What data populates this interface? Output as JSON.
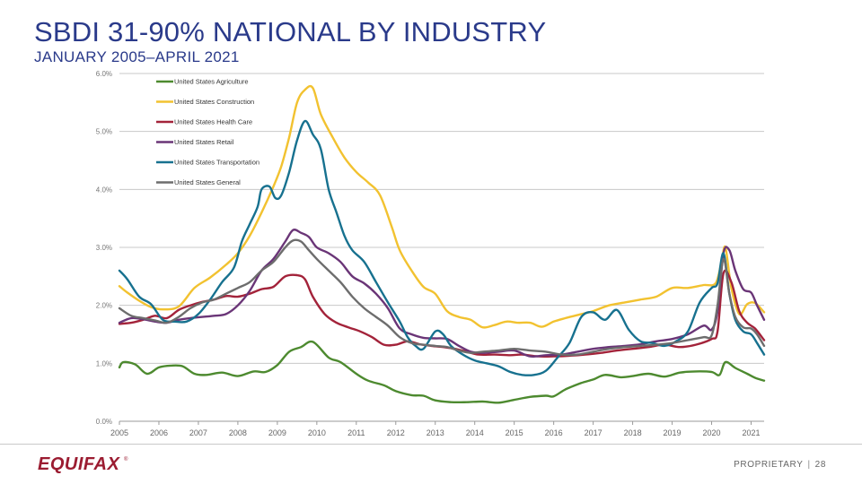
{
  "slide": {
    "title": "SBDI 31-90% NATIONAL BY INDUSTRY",
    "subtitle": "JANUARY 2005–APRIL 2021"
  },
  "footer": {
    "logo_text": "EQUIFAX",
    "proprietary": "PROPRIETARY",
    "separator": "|",
    "page_number": "28"
  },
  "colors": {
    "title": "#2a3a8a",
    "logo": "#9b1c31"
  },
  "chart_data": {
    "type": "line",
    "title": "",
    "xlabel": "",
    "ylabel": "",
    "ylim": [
      0,
      6
    ],
    "xlim": [
      2005,
      2021.33
    ],
    "yticks": [
      {
        "value": 0,
        "label": "0.0%"
      },
      {
        "value": 1,
        "label": "1.0%"
      },
      {
        "value": 2,
        "label": "2.0%"
      },
      {
        "value": 3,
        "label": "3.0%"
      },
      {
        "value": 4,
        "label": "4.0%"
      },
      {
        "value": 5,
        "label": "5.0%"
      },
      {
        "value": 6,
        "label": "6.0%"
      }
    ],
    "xticks": [
      "2005",
      "2006",
      "2007",
      "2008",
      "2009",
      "2010",
      "2011",
      "2012",
      "2013",
      "2014",
      "2015",
      "2016",
      "2017",
      "2018",
      "2019",
      "2020",
      "2021"
    ],
    "grid": true,
    "legend_position": "top-left",
    "series": [
      {
        "name": "United States Agriculture",
        "color": "#4d8a2f",
        "x": [
          2005.0,
          2005.1,
          2005.4,
          2005.7,
          2006.0,
          2006.3,
          2006.6,
          2006.9,
          2007.2,
          2007.6,
          2008.0,
          2008.4,
          2008.7,
          2009.0,
          2009.3,
          2009.6,
          2009.9,
          2010.3,
          2010.6,
          2011.0,
          2011.3,
          2011.7,
          2012.0,
          2012.4,
          2012.7,
          2013.0,
          2013.4,
          2013.8,
          2014.2,
          2014.6,
          2015.0,
          2015.4,
          2015.8,
          2016.0,
          2016.3,
          2016.7,
          2017.0,
          2017.3,
          2017.7,
          2018.0,
          2018.4,
          2018.8,
          2019.2,
          2019.6,
          2020.0,
          2020.2,
          2020.35,
          2020.6,
          2020.9,
          2021.1,
          2021.33
        ],
        "values": [
          0.93,
          1.02,
          0.98,
          0.82,
          0.93,
          0.96,
          0.95,
          0.82,
          0.8,
          0.84,
          0.78,
          0.86,
          0.85,
          0.97,
          1.2,
          1.28,
          1.37,
          1.1,
          1.02,
          0.82,
          0.7,
          0.62,
          0.52,
          0.45,
          0.44,
          0.36,
          0.33,
          0.33,
          0.34,
          0.32,
          0.37,
          0.42,
          0.44,
          0.43,
          0.55,
          0.66,
          0.72,
          0.8,
          0.76,
          0.78,
          0.82,
          0.77,
          0.84,
          0.86,
          0.85,
          0.8,
          1.02,
          0.92,
          0.82,
          0.75,
          0.7
        ]
      },
      {
        "name": "United States Construction",
        "color": "#f2c230",
        "x": [
          2005.0,
          2005.2,
          2005.5,
          2005.8,
          2006.1,
          2006.5,
          2006.9,
          2007.3,
          2007.7,
          2008.0,
          2008.3,
          2008.6,
          2008.9,
          2009.1,
          2009.3,
          2009.5,
          2009.7,
          2009.9,
          2010.1,
          2010.4,
          2010.7,
          2011.0,
          2011.3,
          2011.6,
          2011.9,
          2012.1,
          2012.4,
          2012.7,
          2013.0,
          2013.3,
          2013.6,
          2013.9,
          2014.2,
          2014.5,
          2014.8,
          2015.1,
          2015.4,
          2015.7,
          2016.0,
          2016.3,
          2016.7,
          2017.0,
          2017.4,
          2017.8,
          2018.2,
          2018.6,
          2019.0,
          2019.4,
          2019.8,
          2020.1,
          2020.25,
          2020.35,
          2020.5,
          2020.7,
          2020.9,
          2021.1,
          2021.33
        ],
        "values": [
          2.33,
          2.22,
          2.08,
          1.97,
          1.93,
          1.98,
          2.3,
          2.48,
          2.7,
          2.9,
          3.2,
          3.6,
          4.05,
          4.4,
          4.9,
          5.5,
          5.72,
          5.75,
          5.3,
          4.9,
          4.55,
          4.3,
          4.12,
          3.9,
          3.35,
          2.95,
          2.6,
          2.32,
          2.2,
          1.9,
          1.8,
          1.75,
          1.62,
          1.66,
          1.72,
          1.7,
          1.7,
          1.63,
          1.72,
          1.78,
          1.85,
          1.9,
          2.0,
          2.05,
          2.1,
          2.15,
          2.3,
          2.3,
          2.35,
          2.38,
          2.75,
          3.0,
          2.3,
          1.85,
          2.02,
          2.04,
          1.88
        ]
      },
      {
        "name": "United States Health Care",
        "color": "#a3233a",
        "x": [
          2005.0,
          2005.3,
          2005.6,
          2005.9,
          2006.2,
          2006.5,
          2006.8,
          2007.1,
          2007.4,
          2007.7,
          2008.0,
          2008.3,
          2008.6,
          2008.9,
          2009.2,
          2009.5,
          2009.7,
          2009.9,
          2010.2,
          2010.5,
          2010.8,
          2011.1,
          2011.4,
          2011.7,
          2012.0,
          2012.3,
          2012.6,
          2012.9,
          2013.2,
          2013.5,
          2013.8,
          2014.1,
          2014.5,
          2014.9,
          2015.2,
          2015.6,
          2016.0,
          2016.4,
          2016.8,
          2017.2,
          2017.6,
          2018.0,
          2018.4,
          2018.8,
          2019.2,
          2019.6,
          2020.0,
          2020.15,
          2020.3,
          2020.5,
          2020.7,
          2020.9,
          2021.1,
          2021.33
        ],
        "values": [
          1.68,
          1.7,
          1.75,
          1.82,
          1.78,
          1.92,
          2.0,
          2.06,
          2.1,
          2.16,
          2.15,
          2.2,
          2.28,
          2.32,
          2.5,
          2.52,
          2.45,
          2.15,
          1.85,
          1.7,
          1.62,
          1.55,
          1.45,
          1.32,
          1.32,
          1.38,
          1.33,
          1.3,
          1.28,
          1.25,
          1.2,
          1.15,
          1.15,
          1.14,
          1.15,
          1.12,
          1.12,
          1.13,
          1.15,
          1.18,
          1.22,
          1.25,
          1.28,
          1.32,
          1.28,
          1.32,
          1.42,
          1.55,
          2.55,
          2.4,
          1.9,
          1.7,
          1.6,
          1.4
        ]
      },
      {
        "name": "United States Retail",
        "color": "#6a3577",
        "x": [
          2005.0,
          2005.3,
          2005.6,
          2005.9,
          2006.2,
          2006.5,
          2006.8,
          2007.1,
          2007.4,
          2007.7,
          2008.0,
          2008.3,
          2008.6,
          2008.9,
          2009.2,
          2009.4,
          2009.6,
          2009.8,
          2010.0,
          2010.3,
          2010.6,
          2010.9,
          2011.2,
          2011.5,
          2011.8,
          2012.1,
          2012.4,
          2012.7,
          2013.0,
          2013.3,
          2013.6,
          2013.9,
          2014.2,
          2014.6,
          2015.0,
          2015.4,
          2015.8,
          2016.2,
          2016.6,
          2017.0,
          2017.4,
          2017.8,
          2018.2,
          2018.6,
          2019.0,
          2019.4,
          2019.8,
          2020.0,
          2020.15,
          2020.3,
          2020.45,
          2020.6,
          2020.8,
          2021.0,
          2021.15,
          2021.33
        ],
        "values": [
          1.7,
          1.78,
          1.76,
          1.72,
          1.7,
          1.75,
          1.78,
          1.8,
          1.82,
          1.85,
          2.0,
          2.25,
          2.6,
          2.8,
          3.1,
          3.3,
          3.25,
          3.18,
          3.0,
          2.9,
          2.75,
          2.5,
          2.38,
          2.2,
          1.95,
          1.6,
          1.5,
          1.44,
          1.43,
          1.42,
          1.3,
          1.2,
          1.18,
          1.2,
          1.22,
          1.12,
          1.14,
          1.15,
          1.2,
          1.25,
          1.28,
          1.3,
          1.33,
          1.38,
          1.42,
          1.5,
          1.65,
          1.58,
          1.9,
          2.9,
          2.95,
          2.6,
          2.28,
          2.22,
          2.0,
          1.75
        ]
      },
      {
        "name": "United States Transportation",
        "color": "#17718f",
        "x": [
          2005.0,
          2005.2,
          2005.5,
          2005.8,
          2006.1,
          2006.4,
          2006.7,
          2007.0,
          2007.3,
          2007.6,
          2007.9,
          2008.1,
          2008.3,
          2008.5,
          2008.6,
          2008.8,
          2008.95,
          2009.1,
          2009.3,
          2009.5,
          2009.7,
          2009.9,
          2010.1,
          2010.3,
          2010.5,
          2010.7,
          2010.9,
          2011.2,
          2011.5,
          2011.8,
          2012.1,
          2012.3,
          2012.5,
          2012.7,
          2013.0,
          2013.2,
          2013.4,
          2013.7,
          2014.0,
          2014.3,
          2014.6,
          2014.9,
          2015.2,
          2015.5,
          2015.8,
          2016.1,
          2016.4,
          2016.7,
          2017.0,
          2017.3,
          2017.6,
          2017.9,
          2018.2,
          2018.5,
          2018.8,
          2019.1,
          2019.4,
          2019.7,
          2020.0,
          2020.15,
          2020.3,
          2020.45,
          2020.6,
          2020.8,
          2021.0,
          2021.15,
          2021.33
        ],
        "values": [
          2.6,
          2.45,
          2.15,
          2.02,
          1.75,
          1.72,
          1.72,
          1.85,
          2.1,
          2.4,
          2.65,
          3.1,
          3.4,
          3.7,
          4.0,
          4.05,
          3.85,
          3.9,
          4.3,
          4.85,
          5.18,
          4.95,
          4.7,
          4.0,
          3.6,
          3.2,
          2.95,
          2.75,
          2.4,
          2.05,
          1.72,
          1.45,
          1.3,
          1.25,
          1.55,
          1.5,
          1.3,
          1.15,
          1.05,
          1.0,
          0.95,
          0.85,
          0.8,
          0.8,
          0.87,
          1.1,
          1.35,
          1.8,
          1.88,
          1.75,
          1.92,
          1.58,
          1.38,
          1.35,
          1.3,
          1.38,
          1.55,
          2.05,
          2.3,
          2.38,
          2.9,
          2.2,
          1.75,
          1.55,
          1.5,
          1.35,
          1.15
        ]
      },
      {
        "name": "United States General",
        "color": "#6d6d6d",
        "x": [
          2005.0,
          2005.3,
          2005.6,
          2005.9,
          2006.2,
          2006.5,
          2006.8,
          2007.1,
          2007.4,
          2007.7,
          2008.0,
          2008.3,
          2008.6,
          2008.9,
          2009.2,
          2009.4,
          2009.6,
          2009.8,
          2010.0,
          2010.3,
          2010.6,
          2010.9,
          2011.2,
          2011.5,
          2011.8,
          2012.1,
          2012.4,
          2012.7,
          2013.0,
          2013.3,
          2013.6,
          2013.9,
          2014.2,
          2014.6,
          2015.0,
          2015.4,
          2015.8,
          2016.2,
          2016.6,
          2017.0,
          2017.4,
          2017.8,
          2018.2,
          2018.6,
          2019.0,
          2019.4,
          2019.8,
          2020.0,
          2020.15,
          2020.3,
          2020.45,
          2020.6,
          2020.8,
          2021.0,
          2021.15,
          2021.33
        ],
        "values": [
          1.95,
          1.82,
          1.78,
          1.74,
          1.7,
          1.8,
          1.95,
          2.05,
          2.1,
          2.2,
          2.3,
          2.4,
          2.6,
          2.75,
          3.0,
          3.12,
          3.1,
          2.95,
          2.8,
          2.6,
          2.4,
          2.15,
          1.95,
          1.8,
          1.65,
          1.45,
          1.35,
          1.32,
          1.3,
          1.28,
          1.22,
          1.18,
          1.2,
          1.22,
          1.25,
          1.22,
          1.2,
          1.15,
          1.15,
          1.2,
          1.25,
          1.28,
          1.3,
          1.32,
          1.35,
          1.4,
          1.45,
          1.48,
          2.0,
          2.8,
          2.2,
          1.8,
          1.62,
          1.6,
          1.5,
          1.3
        ]
      }
    ]
  }
}
